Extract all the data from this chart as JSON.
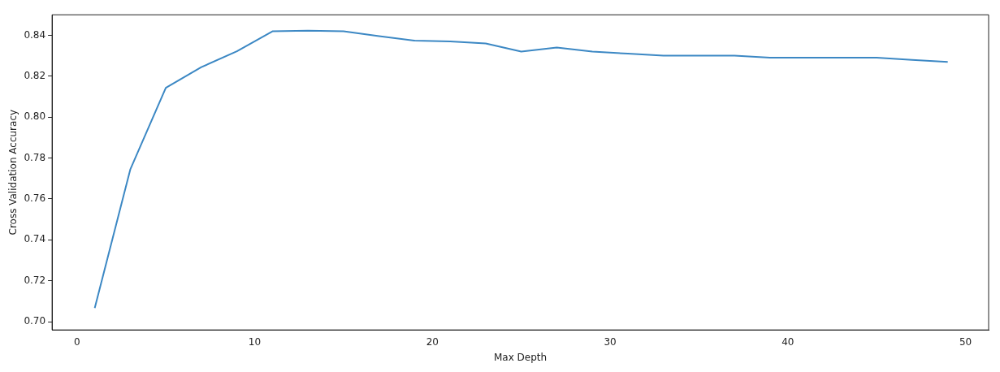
{
  "chart_data": {
    "type": "line",
    "xlabel": "Max Depth",
    "ylabel": "Cross Validation Accuracy",
    "x": [
      1,
      3,
      5,
      7,
      9,
      11,
      13,
      15,
      17,
      19,
      21,
      23,
      25,
      27,
      29,
      31,
      33,
      35,
      37,
      39,
      41,
      43,
      45,
      47,
      49
    ],
    "series": [
      {
        "color": "#3c88c4",
        "values": [
          0.7067,
          0.7744,
          0.8143,
          0.8244,
          0.8322,
          0.8419,
          0.8422,
          0.8419,
          0.8396,
          0.8374,
          0.837,
          0.836,
          0.832,
          0.834,
          0.832,
          0.831,
          0.83,
          0.83,
          0.83,
          0.829,
          0.829,
          0.829,
          0.829,
          0.828,
          0.827
        ]
      }
    ],
    "xlim": [
      -1.4,
      51.3
    ],
    "xticks": [
      0,
      10,
      20,
      30,
      40,
      50
    ],
    "ylim": [
      0.696,
      0.85
    ],
    "yticks": [
      {
        "value": 0.7,
        "label": "0.70"
      },
      0.72,
      0.74,
      0.76,
      0.78,
      {
        "value": 0.8,
        "label": "0.80"
      },
      0.82,
      0.84
    ],
    "grid": false,
    "legend": false,
    "marker": "none",
    "line_style": "solid"
  }
}
